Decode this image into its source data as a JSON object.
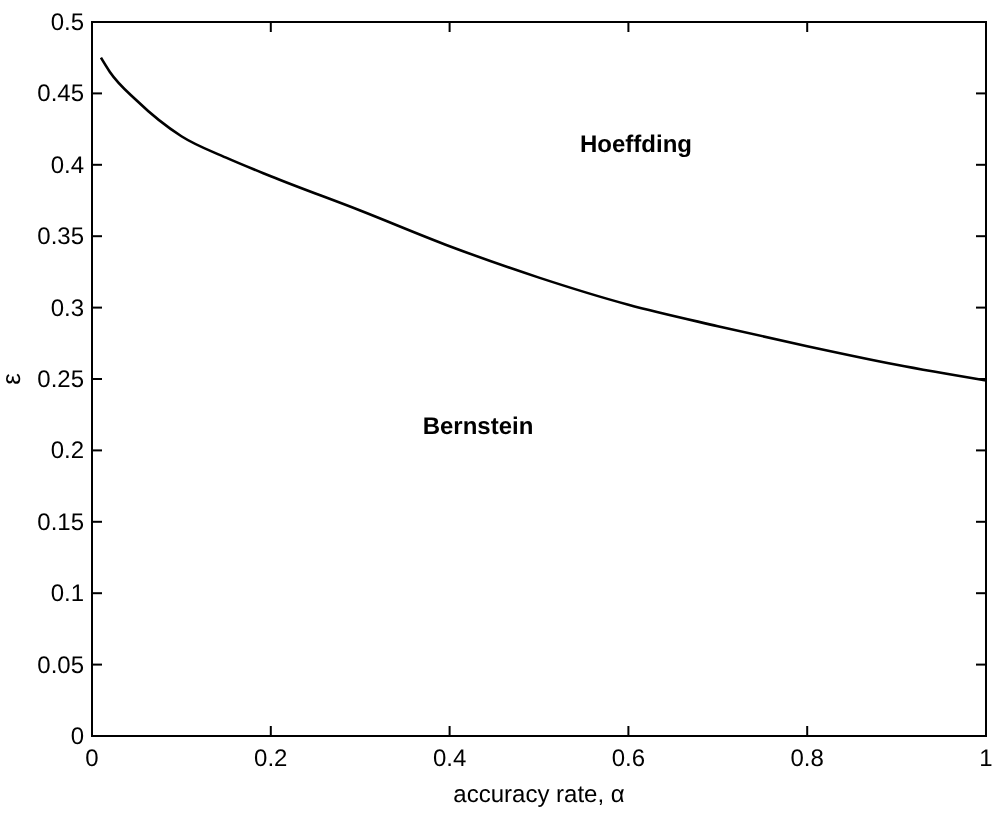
{
  "chart_data": {
    "type": "line",
    "xlabel": "accuracy rate, α",
    "ylabel": "ε",
    "xlim": [
      0,
      1
    ],
    "ylim": [
      0,
      0.5
    ],
    "xticks": [
      0,
      0.2,
      0.4,
      0.6,
      0.8,
      1
    ],
    "yticks": [
      0,
      0.05,
      0.1,
      0.15,
      0.2,
      0.25,
      0.3,
      0.35,
      0.4,
      0.45,
      0.5
    ],
    "grid": false,
    "series": [
      {
        "color": "#000000",
        "x": [
          0.01,
          0.02,
          0.05,
          0.1,
          0.15,
          0.2,
          0.3,
          0.4,
          0.5,
          0.6,
          0.7,
          0.8,
          0.9,
          1.0
        ],
        "values": [
          0.475,
          0.465,
          0.445,
          0.42,
          0.405,
          0.392,
          0.368,
          0.343,
          0.321,
          0.302,
          0.287,
          0.273,
          0.26,
          0.249
        ]
      }
    ],
    "annotations": [
      "Hoeffding",
      "Bernstein"
    ]
  }
}
